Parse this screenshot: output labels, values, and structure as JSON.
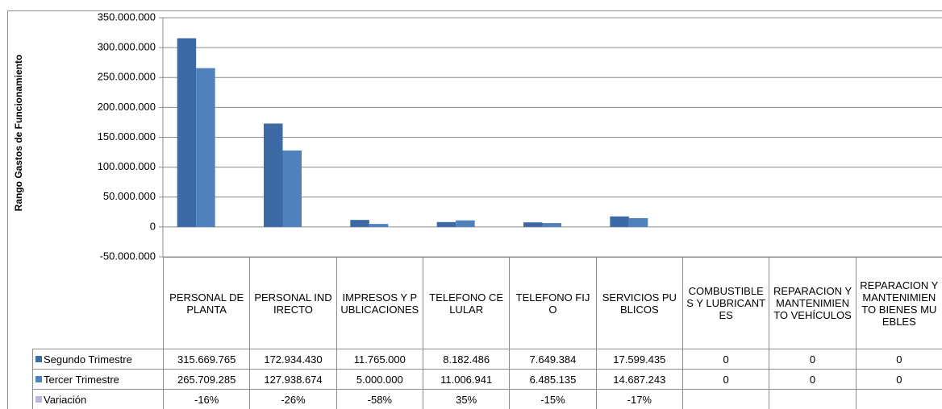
{
  "chart_data": {
    "type": "bar",
    "y_label": "Rango  Gastos de Funcionamiento",
    "categories": [
      "PERSONAL DE PLANTA",
      "PERSONAL INDIRECTO",
      "IMPRESOS Y PUBLICACIONES",
      "TELEFONO CELULAR",
      "TELEFONO FIJO",
      "SERVICIOS PUBLICOS",
      "COMBUSTIBLES Y LUBRICANTES",
      "REPARACION Y MANTENIMIENTO VEHÍCULOS",
      "REPARACION Y MANTENIMIENTO BIENES MUEBLES"
    ],
    "series": [
      {
        "name": "Segundo Trimestre",
        "color": "#3c6aa4",
        "values": [
          315669765,
          172934430,
          11765000,
          8182486,
          7649384,
          17599435,
          0,
          0,
          0
        ],
        "value_labels": [
          "315.669.765",
          "172.934.430",
          "11.765.000",
          "8.182.486",
          "7.649.384",
          "17.599.435",
          "0",
          "0",
          "0"
        ]
      },
      {
        "name": "Tercer Trimestre",
        "color": "#4f81bd",
        "values": [
          265709285,
          127938674,
          5000000,
          11006941,
          6485135,
          14687243,
          0,
          0,
          0
        ],
        "value_labels": [
          "265.709.285",
          "127.938.674",
          "5.000.000",
          "11.006.941",
          "6.485.135",
          "14.687.243",
          "0",
          "0",
          "0"
        ]
      },
      {
        "name": "Variación",
        "color": "#b3b9d6",
        "values": [
          -16,
          -26,
          -58,
          35,
          -15,
          -17,
          null,
          null,
          null
        ],
        "value_labels": [
          "-16%",
          "-26%",
          "-58%",
          "35%",
          "-15%",
          "-17%",
          null,
          null,
          null
        ]
      }
    ],
    "ylim": [
      -50000000,
      350000000
    ],
    "yticks": [
      {
        "value": -50000000,
        "label": "-50.000.000"
      },
      0,
      {
        "value": 50000000,
        "label": "50.000.000"
      },
      {
        "value": 100000000,
        "label": "100.000.000"
      },
      {
        "value": 150000000,
        "label": "150.000.000"
      },
      {
        "value": 200000000,
        "label": "200.000.000"
      },
      {
        "value": 250000000,
        "label": "250.000.000"
      },
      {
        "value": 300000000,
        "label": "300.000.000"
      },
      {
        "value": 350000000,
        "label": "350.000.000"
      }
    ],
    "grid": true,
    "data_table": true
  }
}
